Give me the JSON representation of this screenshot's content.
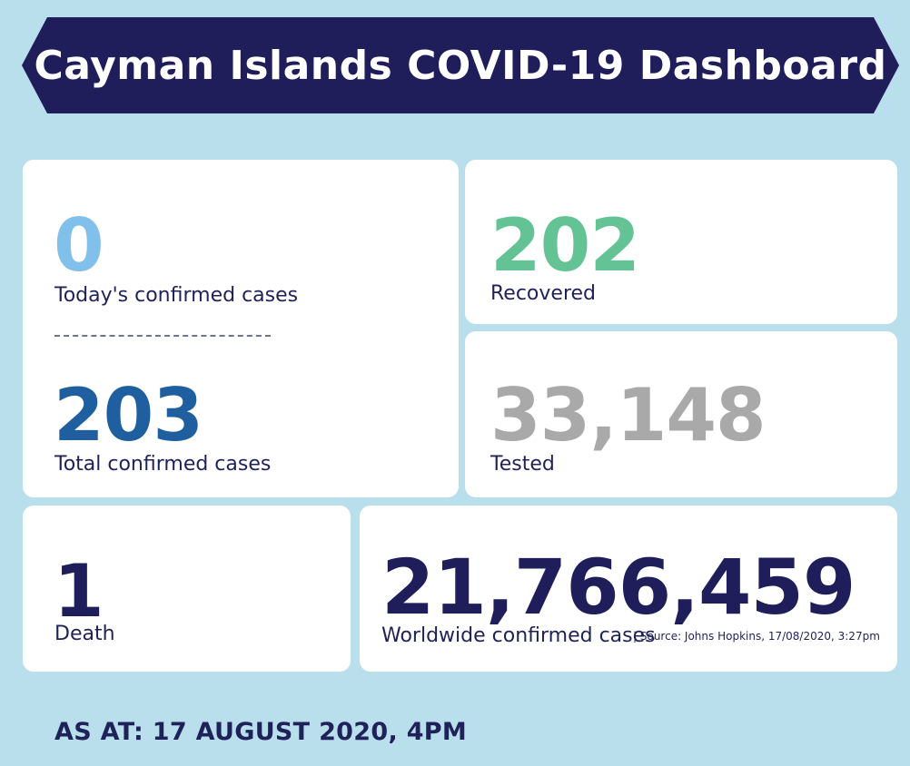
{
  "title": "Cayman Islands COVID-19 Dashboard",
  "colors": {
    "background": "#b9deec",
    "banner": "#1f1d5a",
    "today": "#82c0ec",
    "recovered": "#63c395",
    "total": "#1f5fa0",
    "tested": "#a9a9a9",
    "dark": "#1f1d5a"
  },
  "today": {
    "value": "0",
    "label": "Today's confirmed cases"
  },
  "total": {
    "value": "203",
    "label": "Total confirmed cases"
  },
  "recovered": {
    "value": "202",
    "label": "Recovered"
  },
  "tested": {
    "value": "33,148",
    "label": "Tested"
  },
  "death": {
    "value": "1",
    "label": "Death"
  },
  "worldwide": {
    "value": "21,766,459",
    "label": "Worldwide confirmed cases",
    "source": "| Source: Johns Hopkins, 17/08/2020, 3:27pm"
  },
  "as_at": "AS AT: 17 AUGUST 2020, 4PM"
}
